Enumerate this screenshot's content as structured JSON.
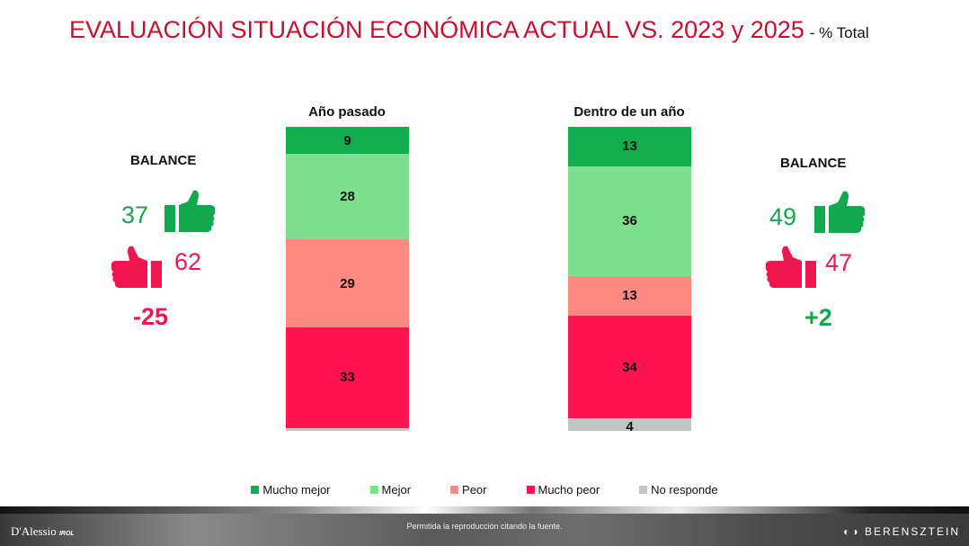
{
  "title": {
    "main": "EVALUACIÓN SITUACIÓN ECONÓMICA ACTUAL VS. 2023 y 2025",
    "sub": "- % Total"
  },
  "chart_data": {
    "type": "bar",
    "stacked": true,
    "categories": [
      "Año pasado",
      "Dentro de un año"
    ],
    "series": [
      {
        "name": "Mucho mejor",
        "color": "#13ad4f",
        "values": [
          9,
          13
        ]
      },
      {
        "name": "Mejor",
        "color": "#7edf8f",
        "values": [
          28,
          36
        ]
      },
      {
        "name": "Peor",
        "color": "#fd8a82",
        "values": [
          29,
          13
        ]
      },
      {
        "name": "Mucho peor",
        "color": "#ff1450",
        "values": [
          33,
          34
        ]
      },
      {
        "name": "No responde",
        "color": "#c4c4c4",
        "values": [
          1,
          4
        ]
      }
    ],
    "data_labels": [
      [
        "9",
        "28",
        "29",
        "33",
        ""
      ],
      [
        "13",
        "36",
        "13",
        "34",
        "4"
      ]
    ],
    "legend_placement": "bottom"
  },
  "left_balance": {
    "label": "BALANCE",
    "positive": "37",
    "negative": "62",
    "balance": "-25"
  },
  "right_balance": {
    "label": "BALANCE",
    "positive": "49",
    "negative": "47",
    "balance": "+2"
  },
  "icons": {
    "positive": "thumbs-up-icon",
    "negative": "thumbs-down-icon"
  },
  "footer": {
    "left_logo": "D'Alessio",
    "left_logo_suffix": "IROL",
    "center": "Permitida la reproducción citando la fuente.",
    "right_logo": "BERENSZTEIN"
  }
}
